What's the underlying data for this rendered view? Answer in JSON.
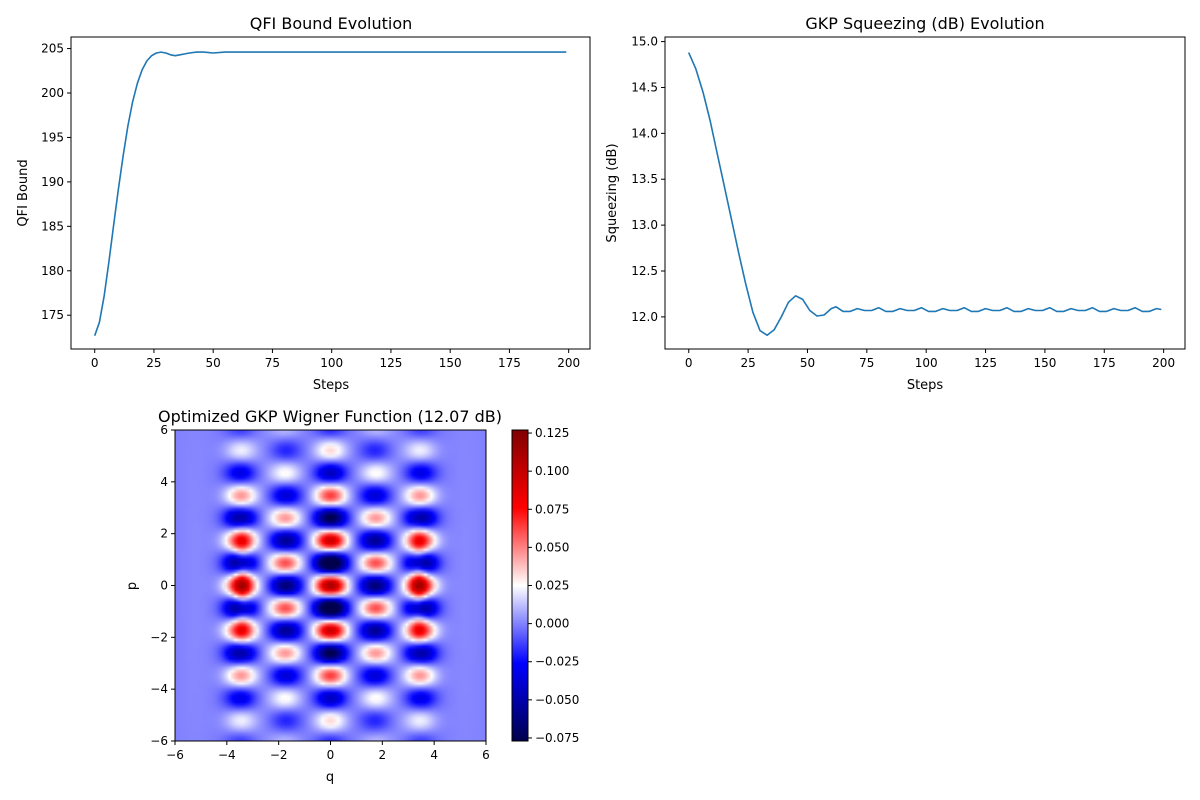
{
  "chart_data": [
    {
      "type": "line",
      "title": "QFI Bound Evolution",
      "xlabel": "Steps",
      "ylabel": "QFI Bound",
      "xlim": [
        -10,
        209
      ],
      "ylim": [
        171.2,
        206.3
      ],
      "xticks": [
        0,
        25,
        50,
        75,
        100,
        125,
        150,
        175,
        200
      ],
      "yticks": [
        175,
        180,
        185,
        190,
        195,
        200,
        205
      ],
      "grid": false,
      "series": [
        {
          "color": "#1f77b4",
          "x": [
            0,
            2,
            4,
            6,
            8,
            10,
            12,
            14,
            16,
            18,
            20,
            22,
            24,
            26,
            28,
            30,
            32,
            34,
            36,
            38,
            40,
            43,
            46,
            50,
            55,
            60,
            70,
            80,
            100,
            120,
            150,
            175,
            199
          ],
          "y": [
            172.7,
            174.2,
            177.2,
            181.0,
            185.2,
            189.2,
            192.9,
            196.3,
            199.0,
            201.1,
            202.6,
            203.6,
            204.2,
            204.5,
            204.6,
            204.5,
            204.3,
            204.2,
            204.3,
            204.4,
            204.5,
            204.6,
            204.6,
            204.5,
            204.6,
            204.6,
            204.6,
            204.6,
            204.6,
            204.6,
            204.6,
            204.6,
            204.6
          ]
        }
      ]
    },
    {
      "type": "line",
      "title": "GKP Squeezing (dB) Evolution",
      "xlabel": "Steps",
      "ylabel": "Squeezing (dB)",
      "xlim": [
        -10,
        209
      ],
      "ylim": [
        11.65,
        15.05
      ],
      "xticks": [
        0,
        25,
        50,
        75,
        100,
        125,
        150,
        175,
        200
      ],
      "yticks": [
        12.0,
        12.5,
        13.0,
        13.5,
        14.0,
        14.5,
        15.0
      ],
      "grid": false,
      "series": [
        {
          "color": "#1f77b4",
          "x": [
            0,
            3,
            6,
            9,
            12,
            15,
            18,
            21,
            24,
            27,
            30,
            33,
            36,
            39,
            42,
            45,
            48,
            51,
            54,
            57,
            60,
            62,
            65,
            68,
            71,
            74,
            77,
            80,
            83,
            86,
            89,
            92,
            95,
            98,
            101,
            104,
            107,
            110,
            113,
            116,
            119,
            122,
            125,
            128,
            131,
            134,
            137,
            140,
            143,
            146,
            149,
            152,
            155,
            158,
            161,
            164,
            167,
            170,
            173,
            176,
            179,
            182,
            185,
            188,
            191,
            194,
            197,
            199
          ],
          "y": [
            14.88,
            14.7,
            14.45,
            14.14,
            13.78,
            13.42,
            13.06,
            12.7,
            12.36,
            12.05,
            11.85,
            11.8,
            11.86,
            12.0,
            12.16,
            12.23,
            12.19,
            12.07,
            12.01,
            12.02,
            12.09,
            12.11,
            12.06,
            12.06,
            12.09,
            12.07,
            12.07,
            12.1,
            12.06,
            12.06,
            12.09,
            12.07,
            12.07,
            12.1,
            12.06,
            12.06,
            12.09,
            12.07,
            12.07,
            12.1,
            12.06,
            12.06,
            12.09,
            12.07,
            12.07,
            12.1,
            12.06,
            12.06,
            12.09,
            12.07,
            12.07,
            12.1,
            12.06,
            12.06,
            12.09,
            12.07,
            12.07,
            12.1,
            12.06,
            12.06,
            12.09,
            12.07,
            12.07,
            12.1,
            12.06,
            12.06,
            12.09,
            12.08
          ]
        }
      ]
    },
    {
      "type": "heatmap",
      "title": "Optimized GKP Wigner Function (12.07 dB)",
      "xlabel": "q",
      "ylabel": "p",
      "xlim": [
        -6,
        6
      ],
      "ylim": [
        -6,
        6
      ],
      "xticks": [
        -6,
        -4,
        -2,
        0,
        2,
        4,
        6
      ],
      "yticks": [
        -6,
        -4,
        -2,
        0,
        2,
        4,
        6
      ],
      "colormap": "seismic",
      "vmin": -0.077,
      "vmax": 0.127,
      "colorbar_ticks": [
        "0.125",
        "0.100",
        "0.075",
        "0.050",
        "0.025",
        "0.000",
        "−0.025",
        "−0.050",
        "−0.075"
      ],
      "colorbar_values": [
        0.125,
        0.1,
        0.075,
        0.05,
        0.025,
        0.0,
        -0.025,
        -0.05,
        -0.075
      ],
      "grid": false
    }
  ]
}
